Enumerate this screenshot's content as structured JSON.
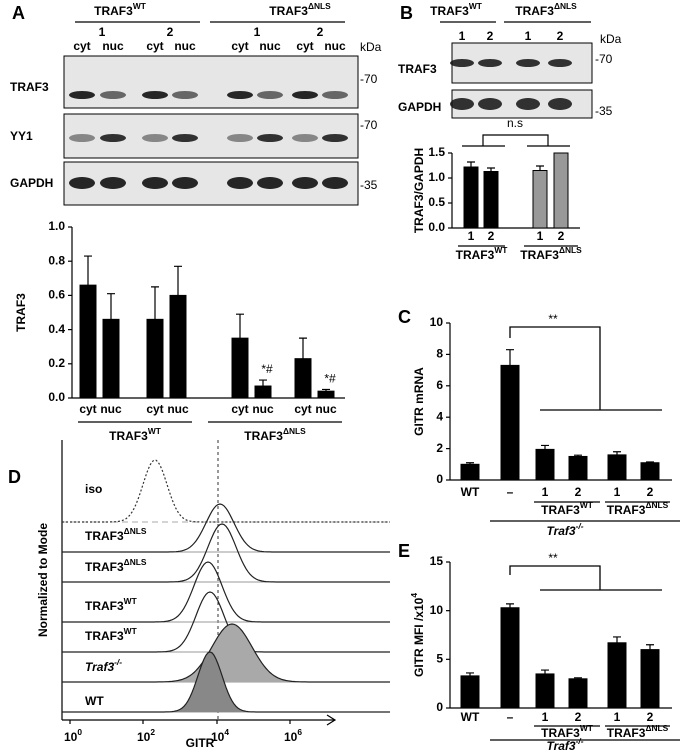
{
  "panel_labels": [
    "A",
    "B",
    "C",
    "D",
    "E"
  ],
  "blot_a": {
    "groups": [
      {
        "text": "TRAF3",
        "sup": "WT"
      },
      {
        "text": "TRAF3",
        "sup": "ΔNLS"
      }
    ],
    "replicates": [
      "1",
      "2",
      "1",
      "2"
    ],
    "fractions": [
      "cyt",
      "nuc",
      "cyt",
      "nuc",
      "cyt",
      "nuc",
      "cyt",
      "nuc"
    ],
    "unit": "kDa",
    "rows": [
      "TRAF3",
      "YY1",
      "GAPDH"
    ],
    "markers": [
      "-70",
      "-70",
      "-35"
    ]
  },
  "blot_b": {
    "groups": [
      {
        "text": "TRAF3",
        "sup": "WT"
      },
      {
        "text": "TRAF3",
        "sup": "ΔNLS"
      }
    ],
    "lanes": [
      "1",
      "2",
      "1",
      "2"
    ],
    "unit": "kDa",
    "rows": [
      "TRAF3",
      "GAPDH"
    ],
    "markers": [
      "-70",
      "-35"
    ]
  },
  "chart_data": [
    {
      "type": "bar",
      "ylabel": "TRAF3",
      "categories": [
        "cyt",
        "nuc",
        "cyt",
        "nuc",
        "cyt",
        "nuc",
        "cyt",
        "nuc"
      ],
      "values": [
        0.66,
        0.46,
        0.46,
        0.6,
        0.35,
        0.07,
        0.23,
        0.04
      ],
      "errors": [
        0.17,
        0.15,
        0.19,
        0.17,
        0.14,
        0.035,
        0.12,
        0.01
      ],
      "marks": [
        null,
        null,
        null,
        null,
        null,
        "*#",
        null,
        "*#"
      ],
      "color": "#000000",
      "ylim": [
        0,
        1
      ],
      "yticks": [
        {
          "value": 0,
          "label": "0.0"
        },
        0.2,
        0.4,
        0.6,
        0.8,
        {
          "value": 1,
          "label": "1.0"
        }
      ],
      "groups": [
        {
          "text": "TRAF3",
          "sup": "WT"
        },
        {
          "text": "TRAF3",
          "sup": "ΔNLS"
        }
      ]
    },
    {
      "type": "bar",
      "ylabel": "TRAF3/GAPDH",
      "categories": [
        "1",
        "2",
        "1",
        "2"
      ],
      "values": [
        1.22,
        1.13,
        1.15,
        1.5
      ],
      "errors": [
        0.1,
        0.07,
        0.09,
        null
      ],
      "colors": [
        "#000000",
        "#000000",
        "#999999",
        "#999999"
      ],
      "ylim": [
        0,
        1.5
      ],
      "yticks": [
        {
          "value": 0,
          "label": "0.0"
        },
        0.5,
        {
          "value": 1,
          "label": "1.0"
        },
        1.5
      ],
      "annotation": "n.s",
      "groups": [
        {
          "text": "TRAF3",
          "sup": "WT"
        },
        {
          "text": "TRAF3",
          "sup": "ΔNLS"
        }
      ]
    },
    {
      "type": "bar",
      "ylabel": "GITR mRNA",
      "categories": [
        "WT",
        "–",
        "1",
        "2",
        "1",
        "2"
      ],
      "values": [
        1.0,
        7.3,
        1.95,
        1.5,
        1.6,
        1.1
      ],
      "errors": [
        0.1,
        1.0,
        0.25,
        0.08,
        0.2,
        0.05
      ],
      "color": "#000000",
      "ylim": [
        0,
        10
      ],
      "yticks": [
        0,
        2,
        4,
        6,
        8,
        10
      ],
      "significance": "**",
      "groups": [
        {
          "text": "TRAF3",
          "sup": "WT"
        },
        {
          "text": "TRAF3",
          "sup": "ΔNLS"
        }
      ],
      "genotype": {
        "text": "Traf3",
        "sup": "-/-"
      }
    },
    {
      "type": "bar",
      "ylabel": {
        "text": "GITR MFI /x10",
        "sup": "4"
      },
      "categories": [
        "WT",
        "–",
        "1",
        "2",
        "1",
        "2"
      ],
      "values": [
        3.3,
        10.3,
        3.5,
        3.0,
        6.7,
        6.0
      ],
      "errors": [
        0.3,
        0.4,
        0.4,
        0.1,
        0.6,
        0.5
      ],
      "color": "#000000",
      "ylim": [
        0,
        15
      ],
      "yticks": [
        0,
        5,
        10,
        15
      ],
      "significance": "**",
      "groups": [
        {
          "text": "TRAF3",
          "sup": "WT"
        },
        {
          "text": "TRAF3",
          "sup": "ΔNLS"
        }
      ],
      "genotype": {
        "text": "Traf3",
        "sup": "-/-"
      }
    }
  ],
  "flow_d": {
    "labels": [
      "iso",
      {
        "text": "TRAF3",
        "sup": "ΔNLS"
      },
      {
        "text": "TRAF3",
        "sup": "ΔNLS"
      },
      {
        "text": "TRAF3",
        "sup": "WT"
      },
      {
        "text": "TRAF3",
        "sup": "WT"
      },
      {
        "text": "Traf3",
        "sup": "-/-"
      },
      "WT"
    ],
    "ylabel": "Normalized to Mode",
    "xlabel": "GITR",
    "xtick_labels": [
      {
        "text": "10",
        "sup": "0"
      },
      {
        "text": "10",
        "sup": "2"
      },
      {
        "text": "10",
        "sup": "4"
      },
      {
        "text": "10",
        "sup": "6"
      }
    ]
  }
}
